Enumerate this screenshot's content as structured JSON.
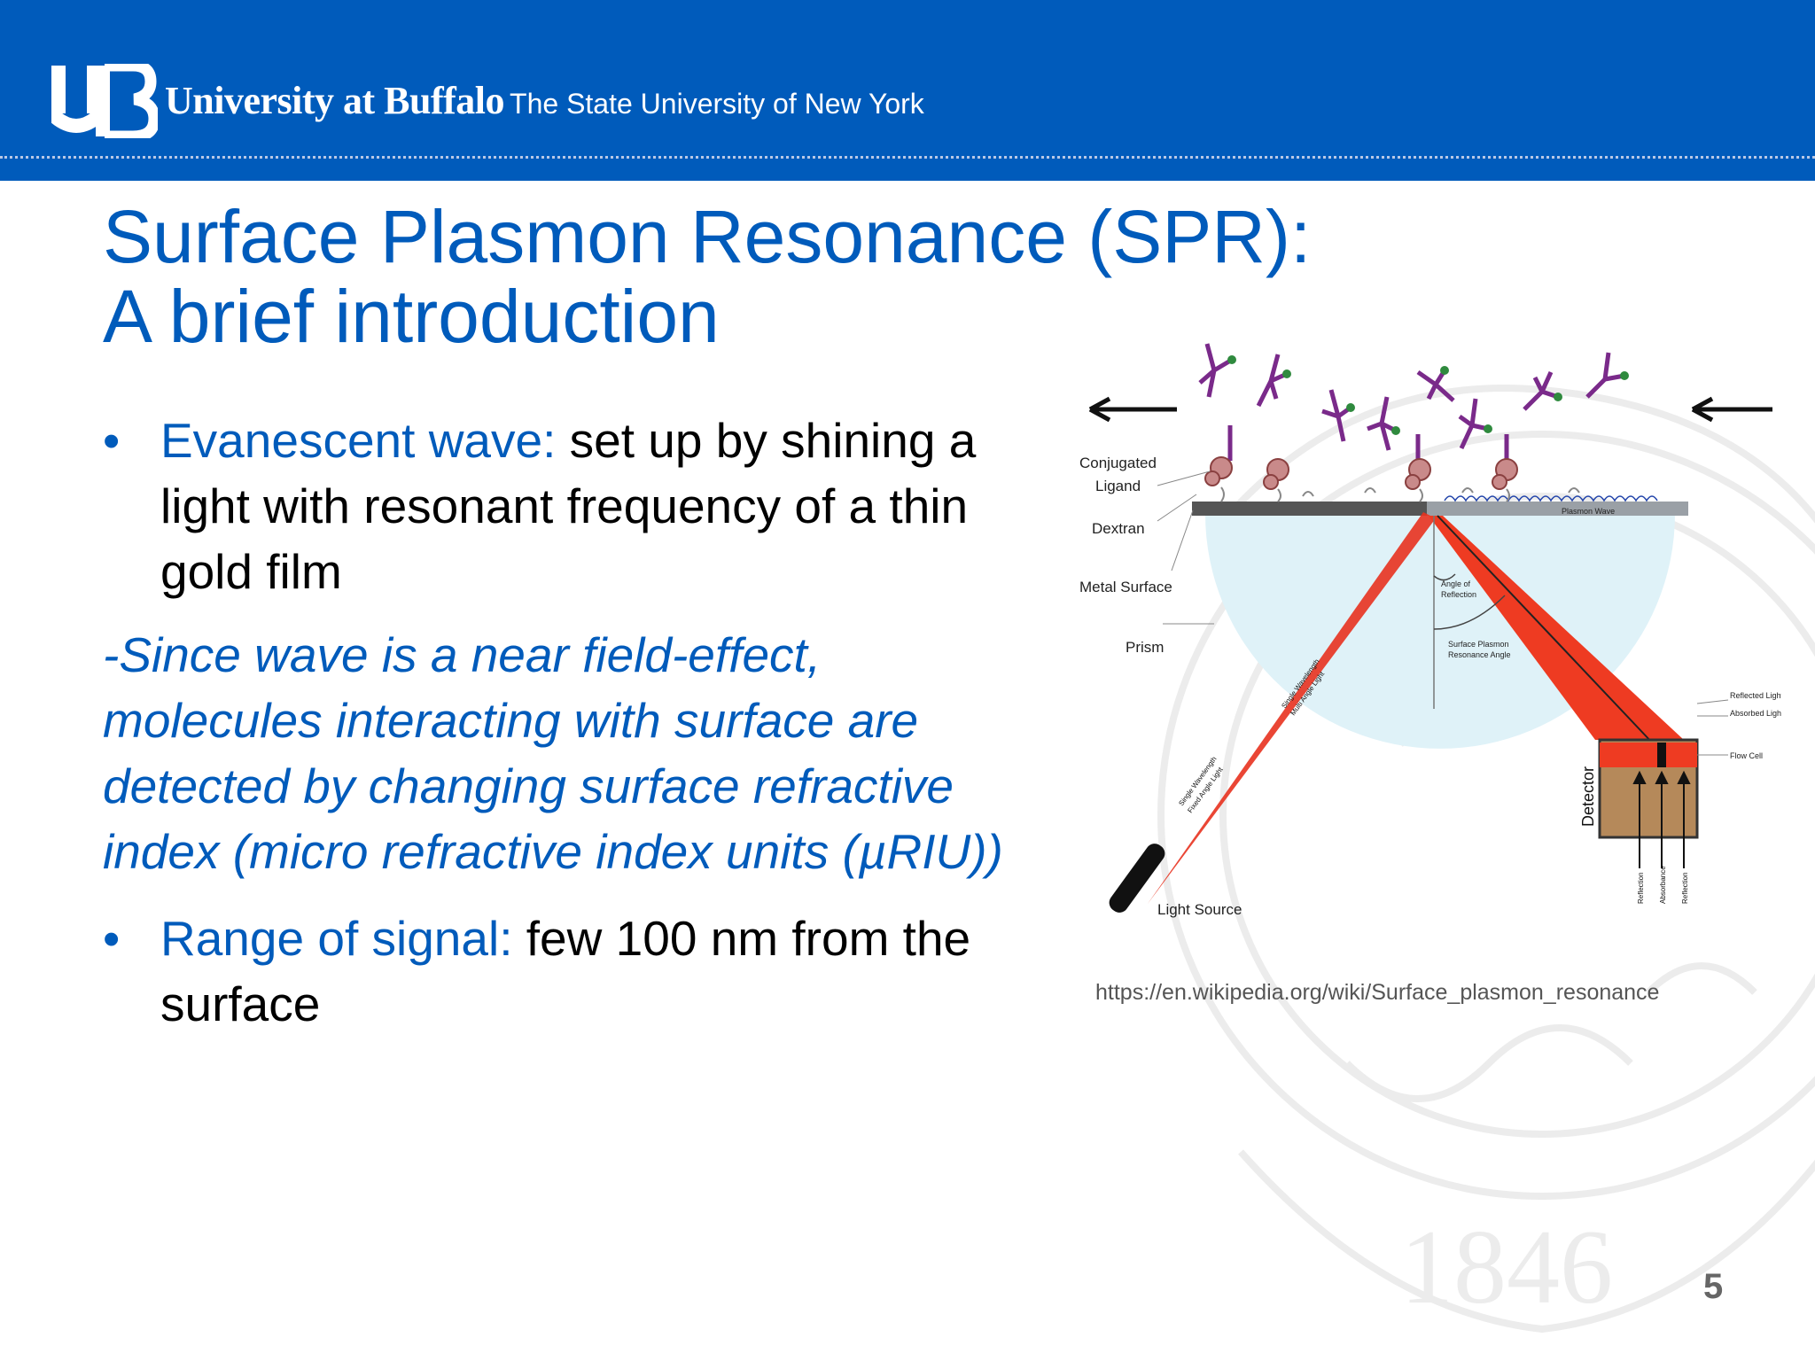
{
  "header": {
    "brand_name": "University at Buffalo",
    "brand_subtitle": "The State University of New York",
    "colors": {
      "brand_blue": "#005bbb"
    }
  },
  "slide": {
    "title_line1": "Surface Plasmon Resonance (SPR):",
    "title_line2": "A brief introduction",
    "bullets": [
      {
        "lead": "Evanescent wave:",
        "text": " set up by shining a light with resonant frequency of a thin gold film"
      },
      {
        "lead": "Range of signal:",
        "text": " few 100 nm from the surface"
      }
    ],
    "note": "-Since wave is a near field-effect, molecules interacting with surface are detected by changing surface refractive index (micro refractive index units (µRIU))",
    "source_url": "https://en.wikipedia.org/wiki/Surface_plasmon_resonance",
    "page_number": "5",
    "watermark_year": "1846"
  },
  "diagram": {
    "labels": {
      "conjugated": "Conjugated",
      "ligand": "Ligand",
      "dextran": "Dextran",
      "metal_surface": "Metal Surface",
      "prism": "Prism",
      "light_source": "Light Source",
      "detector": "Detector",
      "plasmon_wave": "Plasmon Wave",
      "angle_of": "Angle of",
      "reflection": "Reflection",
      "surface_plasmon": "Surface Plasmon",
      "resonance_angle": "Resonance Angle",
      "reflected_light": "Reflected Light",
      "absorbed_light": "Absorbed Light",
      "flow_cell": "Flow Cell",
      "beam_in_1": "Single Wavelength",
      "beam_in_2": "Multi Angle Light",
      "beam_source_1": "Single Wavelength",
      "beam_source_2": "Fixed Angle Light",
      "arrow_reflection": "Reflection",
      "arrow_absorbance": "Absorbance",
      "arrow_reflection_2": "Reflection"
    }
  }
}
